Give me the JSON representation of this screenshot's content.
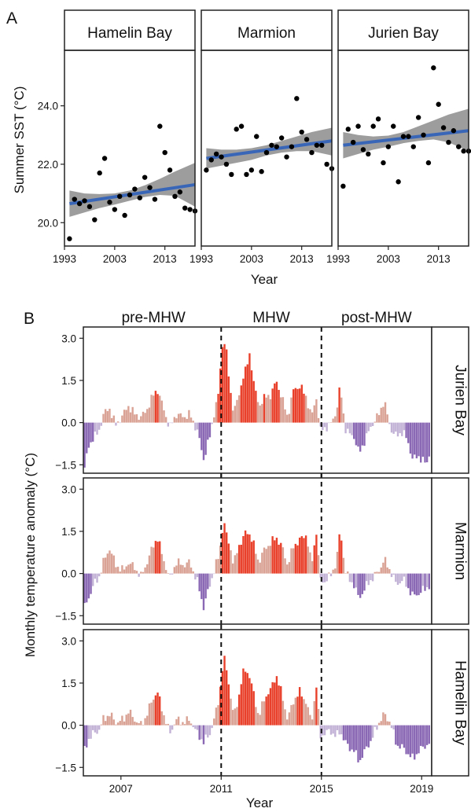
{
  "panel_a": {
    "letter": "A",
    "ylabel": "Summer SST (°C)",
    "xlabel": "Year"
  },
  "panel_b": {
    "letter": "B",
    "ylabel": "Monthly temperature anomaly (°C)",
    "xlabel": "Year"
  },
  "colors": {
    "trend_line": "#3a66b8",
    "confidence_band": "#8c8c8c",
    "warm_strong": "#e8402a",
    "warm_light": "#d9a294",
    "cool_light": "#c2b2d6",
    "cool_strong": "#8a68b4"
  },
  "chart_data": [
    {
      "type": "scatter",
      "title": "Hamelin Bay",
      "xlabel": "Year",
      "ylabel": "Summer SST (°C)",
      "xlim": [
        1993,
        2019
      ],
      "ylim": [
        19.2,
        25.9
      ],
      "xticks": [
        1993,
        2003,
        2013
      ],
      "yticks": [
        20.0,
        22.0,
        24.0
      ],
      "ytick_labels": [
        "20.0",
        "22.0",
        "24.0"
      ],
      "x": [
        1994,
        1995,
        1996,
        1997,
        1998,
        1999,
        2000,
        2001,
        2002,
        2003,
        2004,
        2005,
        2006,
        2007,
        2008,
        2009,
        2010,
        2011,
        2012,
        2013,
        2014,
        2015,
        2016,
        2017,
        2018,
        2019
      ],
      "y": [
        19.45,
        20.8,
        20.65,
        20.75,
        20.55,
        20.1,
        21.7,
        22.2,
        20.7,
        20.45,
        20.9,
        20.25,
        20.95,
        21.15,
        20.85,
        21.55,
        21.2,
        20.8,
        23.3,
        22.4,
        21.8,
        20.9,
        21.05,
        20.5,
        20.45,
        20.4
      ],
      "trend": {
        "x": [
          1994,
          2019
        ],
        "y": [
          20.65,
          21.3
        ]
      },
      "band": {
        "x": [
          1994,
          1997,
          2000,
          2003,
          2006,
          2009,
          2012,
          2015,
          2019
        ],
        "upper": [
          21.1,
          21.0,
          20.98,
          21.0,
          21.1,
          21.28,
          21.5,
          21.75,
          22.05
        ],
        "lower": [
          20.2,
          20.35,
          20.5,
          20.62,
          20.75,
          20.88,
          20.95,
          20.92,
          20.55
        ]
      },
      "grid": false
    },
    {
      "type": "scatter",
      "title": "Marmion",
      "xlabel": "Year",
      "xlim": [
        1993,
        2019
      ],
      "ylim": [
        19.2,
        25.9
      ],
      "xticks": [
        1993,
        2003,
        2013
      ],
      "x": [
        1994,
        1995,
        1996,
        1997,
        1998,
        1999,
        2000,
        2001,
        2002,
        2003,
        2004,
        2005,
        2006,
        2007,
        2008,
        2009,
        2010,
        2011,
        2012,
        2013,
        2014,
        2015,
        2016,
        2017,
        2018,
        2019
      ],
      "y": [
        21.8,
        22.15,
        22.35,
        22.25,
        22.0,
        21.65,
        23.2,
        23.3,
        21.65,
        21.8,
        22.95,
        21.75,
        22.4,
        22.65,
        22.6,
        22.9,
        22.25,
        22.6,
        24.25,
        23.1,
        22.85,
        22.4,
        22.65,
        22.65,
        22.0,
        21.85
      ],
      "trend": {
        "x": [
          1994,
          2019
        ],
        "y": [
          22.2,
          22.8
        ]
      },
      "band": {
        "x": [
          1994,
          1997,
          2000,
          2003,
          2006,
          2009,
          2012,
          2015,
          2019
        ],
        "upper": [
          22.55,
          22.5,
          22.5,
          22.55,
          22.65,
          22.8,
          22.95,
          23.1,
          23.25
        ],
        "lower": [
          21.85,
          21.95,
          22.05,
          22.15,
          22.3,
          22.4,
          22.45,
          22.45,
          22.3
        ]
      },
      "grid": false
    },
    {
      "type": "scatter",
      "title": "Jurien Bay",
      "xlabel": "Year",
      "xlim": [
        1993,
        2019
      ],
      "ylim": [
        19.2,
        25.9
      ],
      "xticks": [
        1993,
        2003,
        2013
      ],
      "x": [
        1994,
        1995,
        1996,
        1997,
        1998,
        1999,
        2000,
        2001,
        2002,
        2003,
        2004,
        2005,
        2006,
        2007,
        2008,
        2009,
        2010,
        2011,
        2012,
        2013,
        2014,
        2015,
        2016,
        2017,
        2018,
        2019
      ],
      "y": [
        21.25,
        23.2,
        22.75,
        23.3,
        22.5,
        22.35,
        23.3,
        23.55,
        22.05,
        22.6,
        23.3,
        21.4,
        22.95,
        22.95,
        22.6,
        23.6,
        23.0,
        22.05,
        25.3,
        24.05,
        23.25,
        22.75,
        23.15,
        22.6,
        22.45,
        22.45
      ],
      "trend": {
        "x": [
          1994,
          2019
        ],
        "y": [
          22.65,
          23.15
        ]
      },
      "band": {
        "x": [
          1994,
          1997,
          2000,
          2003,
          2006,
          2009,
          2012,
          2015,
          2019
        ],
        "upper": [
          23.1,
          23.0,
          22.95,
          22.98,
          23.1,
          23.3,
          23.5,
          23.7,
          23.9
        ],
        "lower": [
          22.2,
          22.35,
          22.5,
          22.6,
          22.72,
          22.8,
          22.85,
          22.75,
          22.45
        ]
      },
      "grid": false
    },
    {
      "type": "bar",
      "title": "Jurien Bay",
      "xlabel": "Year",
      "ylabel": "Monthly temperature anomaly (°C)",
      "xlim": [
        2005.5,
        2019.4
      ],
      "ylim": [
        -1.8,
        3.4
      ],
      "yticks": [
        -1.5,
        0.0,
        1.5,
        3.0
      ],
      "ytick_labels": [
        "−1.5",
        "0.0",
        "1.5",
        "3.0"
      ],
      "xticks": [
        2007,
        2011,
        2015,
        2019
      ],
      "period_labels": [
        "pre-MHW",
        "MHW",
        "post-MHW"
      ],
      "period_boundaries": [
        2011,
        2015
      ],
      "anchors": [
        [
          2005.55,
          -1.6
        ],
        [
          2005.7,
          -0.9
        ],
        [
          2005.9,
          -0.5
        ],
        [
          2006.1,
          -0.4
        ],
        [
          2006.3,
          0.3
        ],
        [
          2006.55,
          0.5
        ],
        [
          2006.8,
          -0.1
        ],
        [
          2007.1,
          0.3
        ],
        [
          2007.3,
          0.6
        ],
        [
          2007.55,
          0.3
        ],
        [
          2007.8,
          0.2
        ],
        [
          2008.0,
          0.4
        ],
        [
          2008.25,
          0.9
        ],
        [
          2008.45,
          1.2
        ],
        [
          2008.7,
          0.5
        ],
        [
          2008.95,
          -0.2
        ],
        [
          2009.2,
          0.3
        ],
        [
          2009.5,
          0.2
        ],
        [
          2009.75,
          0.3
        ],
        [
          2010.05,
          -0.3
        ],
        [
          2010.3,
          -1.3
        ],
        [
          2010.55,
          -0.5
        ],
        [
          2010.75,
          0.5
        ],
        [
          2010.9,
          1.0
        ],
        [
          2011.0,
          2.4
        ],
        [
          2011.1,
          3.05
        ],
        [
          2011.2,
          2.6
        ],
        [
          2011.35,
          1.2
        ],
        [
          2011.5,
          0.4
        ],
        [
          2011.7,
          0.9
        ],
        [
          2011.85,
          1.6
        ],
        [
          2012.0,
          1.9
        ],
        [
          2012.15,
          2.5
        ],
        [
          2012.3,
          1.4
        ],
        [
          2012.5,
          0.6
        ],
        [
          2012.75,
          0.9
        ],
        [
          2013.0,
          1.0
        ],
        [
          2013.2,
          1.5
        ],
        [
          2013.45,
          0.8
        ],
        [
          2013.65,
          0.2
        ],
        [
          2013.9,
          1.2
        ],
        [
          2014.15,
          1.3
        ],
        [
          2014.4,
          0.9
        ],
        [
          2014.6,
          0.2
        ],
        [
          2014.8,
          0.9
        ],
        [
          2014.95,
          -0.3
        ],
        [
          2015.1,
          -0.2
        ],
        [
          2015.35,
          -0.1
        ],
        [
          2015.6,
          0.4
        ],
        [
          2015.75,
          1.3
        ],
        [
          2015.95,
          -0.2
        ],
        [
          2016.1,
          -0.4
        ],
        [
          2016.3,
          -0.5
        ],
        [
          2016.5,
          -1.1
        ],
        [
          2016.75,
          -0.6
        ],
        [
          2017.0,
          -0.1
        ],
        [
          2017.3,
          0.3
        ],
        [
          2017.5,
          0.8
        ],
        [
          2017.75,
          -0.2
        ],
        [
          2018.0,
          -0.5
        ],
        [
          2018.25,
          -0.3
        ],
        [
          2018.45,
          -0.7
        ],
        [
          2018.65,
          -1.3
        ],
        [
          2018.9,
          -1.2
        ],
        [
          2019.2,
          -1.5
        ],
        [
          2019.35,
          -0.9
        ]
      ],
      "grid": false
    },
    {
      "type": "bar",
      "title": "Marmion",
      "xlabel": "Year",
      "xlim": [
        2005.5,
        2019.4
      ],
      "ylim": [
        -1.8,
        3.4
      ],
      "yticks": [
        -1.5,
        0.0,
        1.5,
        3.0
      ],
      "ytick_labels": [
        "−1.5",
        "0.0",
        "1.5",
        "3.0"
      ],
      "xticks": [
        2007,
        2011,
        2015,
        2019
      ],
      "period_boundaries": [
        2011,
        2015
      ],
      "anchors": [
        [
          2005.55,
          -1.2
        ],
        [
          2005.7,
          -0.9
        ],
        [
          2005.9,
          -0.4
        ],
        [
          2006.1,
          -0.2
        ],
        [
          2006.3,
          0.4
        ],
        [
          2006.55,
          0.9
        ],
        [
          2006.8,
          0.3
        ],
        [
          2007.1,
          0.1
        ],
        [
          2007.3,
          0.4
        ],
        [
          2007.55,
          0.2
        ],
        [
          2007.8,
          -0.1
        ],
        [
          2008.0,
          0.3
        ],
        [
          2008.25,
          0.9
        ],
        [
          2008.45,
          1.3
        ],
        [
          2008.7,
          0.5
        ],
        [
          2008.95,
          -0.2
        ],
        [
          2009.2,
          0.4
        ],
        [
          2009.5,
          0.3
        ],
        [
          2009.75,
          0.4
        ],
        [
          2010.05,
          -0.3
        ],
        [
          2010.3,
          -1.2
        ],
        [
          2010.55,
          -0.4
        ],
        [
          2010.75,
          0.2
        ],
        [
          2010.9,
          0.6
        ],
        [
          2011.0,
          1.2
        ],
        [
          2011.1,
          1.9
        ],
        [
          2011.2,
          1.4
        ],
        [
          2011.35,
          1.0
        ],
        [
          2011.5,
          0.3
        ],
        [
          2011.7,
          1.0
        ],
        [
          2011.85,
          1.2
        ],
        [
          2012.0,
          1.5
        ],
        [
          2012.15,
          1.4
        ],
        [
          2012.3,
          1.0
        ],
        [
          2012.5,
          0.4
        ],
        [
          2012.75,
          0.9
        ],
        [
          2013.0,
          1.1
        ],
        [
          2013.2,
          1.3
        ],
        [
          2013.45,
          0.9
        ],
        [
          2013.65,
          0.3
        ],
        [
          2013.9,
          1.0
        ],
        [
          2014.15,
          1.2
        ],
        [
          2014.4,
          1.4
        ],
        [
          2014.6,
          0.3
        ],
        [
          2014.8,
          1.5
        ],
        [
          2014.95,
          -0.2
        ],
        [
          2015.1,
          -0.3
        ],
        [
          2015.35,
          -0.1
        ],
        [
          2015.6,
          0.4
        ],
        [
          2015.75,
          1.6
        ],
        [
          2015.95,
          0.1
        ],
        [
          2016.1,
          -0.2
        ],
        [
          2016.3,
          -0.4
        ],
        [
          2016.5,
          -0.9
        ],
        [
          2016.75,
          -0.5
        ],
        [
          2017.0,
          -0.2
        ],
        [
          2017.3,
          0.1
        ],
        [
          2017.5,
          0.5
        ],
        [
          2017.75,
          0.1
        ],
        [
          2018.0,
          -0.4
        ],
        [
          2018.25,
          -0.2
        ],
        [
          2018.45,
          -0.5
        ],
        [
          2018.65,
          -0.8
        ],
        [
          2018.9,
          -0.7
        ],
        [
          2019.2,
          -0.5
        ],
        [
          2019.35,
          -0.4
        ]
      ],
      "grid": false
    },
    {
      "type": "bar",
      "title": "Hamelin Bay",
      "xlabel": "Year",
      "xlim": [
        2005.5,
        2019.4
      ],
      "ylim": [
        -1.8,
        3.4
      ],
      "yticks": [
        -1.5,
        0.0,
        1.5,
        3.0
      ],
      "ytick_labels": [
        "−1.5",
        "0.0",
        "1.5",
        "3.0"
      ],
      "xticks": [
        2007,
        2011,
        2015,
        2019
      ],
      "period_boundaries": [
        2011,
        2015
      ],
      "anchors": [
        [
          2005.55,
          -0.9
        ],
        [
          2005.7,
          -0.5
        ],
        [
          2005.9,
          -0.3
        ],
        [
          2006.1,
          -0.2
        ],
        [
          2006.3,
          0.2
        ],
        [
          2006.55,
          0.4
        ],
        [
          2006.8,
          0.1
        ],
        [
          2007.1,
          0.2
        ],
        [
          2007.3,
          0.5
        ],
        [
          2007.55,
          0.2
        ],
        [
          2007.8,
          0.0
        ],
        [
          2008.0,
          0.3
        ],
        [
          2008.25,
          0.9
        ],
        [
          2008.45,
          1.2
        ],
        [
          2008.7,
          0.4
        ],
        [
          2008.95,
          -0.3
        ],
        [
          2009.2,
          0.2
        ],
        [
          2009.5,
          0.1
        ],
        [
          2009.75,
          0.2
        ],
        [
          2010.05,
          -0.3
        ],
        [
          2010.3,
          -0.6
        ],
        [
          2010.55,
          -0.3
        ],
        [
          2010.75,
          0.3
        ],
        [
          2010.9,
          0.9
        ],
        [
          2011.0,
          1.6
        ],
        [
          2011.1,
          2.4
        ],
        [
          2011.2,
          2.1
        ],
        [
          2011.35,
          1.2
        ],
        [
          2011.5,
          0.3
        ],
        [
          2011.7,
          1.0
        ],
        [
          2011.85,
          1.8
        ],
        [
          2012.0,
          2.0
        ],
        [
          2012.15,
          1.7
        ],
        [
          2012.3,
          1.1
        ],
        [
          2012.5,
          0.3
        ],
        [
          2012.75,
          1.0
        ],
        [
          2013.0,
          1.3
        ],
        [
          2013.2,
          1.8
        ],
        [
          2013.45,
          1.0
        ],
        [
          2013.65,
          0.2
        ],
        [
          2013.9,
          0.9
        ],
        [
          2014.15,
          1.2
        ],
        [
          2014.4,
          0.8
        ],
        [
          2014.6,
          0.1
        ],
        [
          2014.8,
          1.4
        ],
        [
          2014.95,
          -0.4
        ],
        [
          2015.1,
          -0.3
        ],
        [
          2015.35,
          -0.2
        ],
        [
          2015.6,
          -0.4
        ],
        [
          2015.75,
          -0.2
        ],
        [
          2015.95,
          -0.6
        ],
        [
          2016.1,
          -0.8
        ],
        [
          2016.3,
          -0.9
        ],
        [
          2016.5,
          -1.3
        ],
        [
          2016.75,
          -0.9
        ],
        [
          2017.0,
          -0.5
        ],
        [
          2017.3,
          0.1
        ],
        [
          2017.5,
          0.4
        ],
        [
          2017.75,
          0.1
        ],
        [
          2018.0,
          -0.7
        ],
        [
          2018.25,
          -0.8
        ],
        [
          2018.45,
          -1.0
        ],
        [
          2018.65,
          -1.2
        ],
        [
          2018.9,
          -0.9
        ],
        [
          2019.2,
          -0.7
        ],
        [
          2019.35,
          -0.6
        ]
      ],
      "grid": false
    }
  ]
}
